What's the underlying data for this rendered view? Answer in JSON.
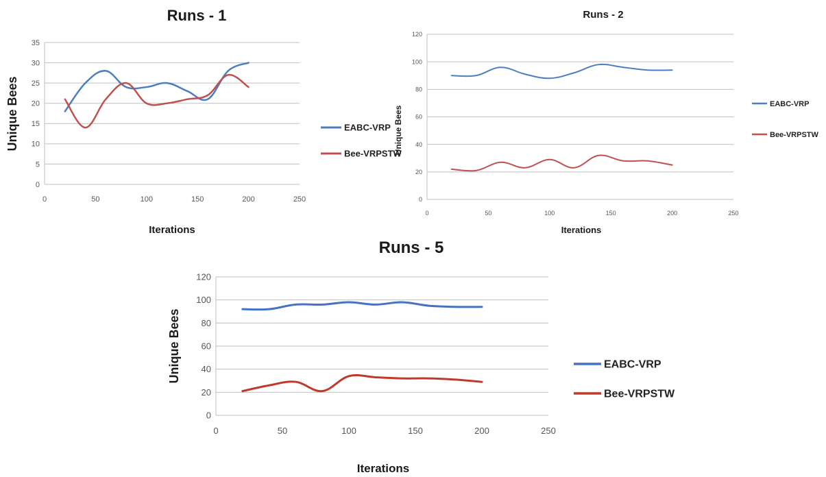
{
  "chart_data": [
    {
      "type": "line",
      "title": "Runs - 1",
      "xlabel": "Iterations",
      "ylabel": "Unique Bees",
      "xlim": [
        0,
        250
      ],
      "ylim": [
        0,
        35
      ],
      "xticks": [
        0,
        50,
        100,
        150,
        200,
        250
      ],
      "yticks": [
        0,
        5,
        10,
        15,
        20,
        25,
        30,
        35
      ],
      "grid": true,
      "legend_position": "right",
      "series": [
        {
          "name": "EABC-VRP",
          "color": "#4a7ebf",
          "x": [
            20,
            40,
            60,
            80,
            100,
            120,
            140,
            160,
            180,
            200
          ],
          "y": [
            18,
            25,
            28,
            24,
            24,
            25,
            23,
            21,
            28,
            30
          ]
        },
        {
          "name": "Bee-VRPSTW",
          "color": "#c0504d",
          "x": [
            20,
            40,
            60,
            80,
            100,
            120,
            140,
            160,
            180,
            200
          ],
          "y": [
            21,
            14,
            21,
            25,
            20,
            20,
            21,
            22,
            27,
            24
          ]
        }
      ]
    },
    {
      "type": "line",
      "title": "Runs - 2",
      "xlabel": "Iterations",
      "ylabel": "Unique Bees",
      "xlim": [
        0,
        250
      ],
      "ylim": [
        0,
        120
      ],
      "xticks": [
        0,
        50,
        100,
        150,
        200,
        250
      ],
      "yticks": [
        0,
        20,
        40,
        60,
        80,
        100,
        120
      ],
      "grid": true,
      "legend_position": "right",
      "series": [
        {
          "name": "EABC-VRP",
          "color": "#4a7ebf",
          "x": [
            20,
            40,
            60,
            80,
            100,
            120,
            140,
            160,
            180,
            200
          ],
          "y": [
            90,
            90,
            96,
            91,
            88,
            92,
            98,
            96,
            94,
            94
          ]
        },
        {
          "name": "Bee-VRPSTW",
          "color": "#c0504d",
          "x": [
            20,
            40,
            60,
            80,
            100,
            120,
            140,
            160,
            180,
            200
          ],
          "y": [
            22,
            21,
            27,
            23,
            29,
            23,
            32,
            28,
            28,
            25
          ]
        }
      ]
    },
    {
      "type": "line",
      "title": "Runs - 5",
      "xlabel": "Iterations",
      "ylabel": "Unique Bees",
      "xlim": [
        0,
        250
      ],
      "ylim": [
        0,
        120
      ],
      "xticks": [
        0,
        50,
        100,
        150,
        200,
        250
      ],
      "yticks": [
        0,
        20,
        40,
        60,
        80,
        100,
        120
      ],
      "grid": true,
      "legend_position": "right",
      "series": [
        {
          "name": "EABC-VRP",
          "color": "#4472c4",
          "x": [
            20,
            40,
            60,
            80,
            100,
            120,
            140,
            160,
            180,
            200
          ],
          "y": [
            92,
            92,
            96,
            96,
            98,
            96,
            98,
            95,
            94,
            94
          ]
        },
        {
          "name": "Bee-VRPSTW",
          "color": "#c0392b",
          "x": [
            20,
            40,
            60,
            80,
            100,
            120,
            140,
            160,
            180,
            200
          ],
          "y": [
            21,
            26,
            29,
            21,
            34,
            33,
            32,
            32,
            31,
            29
          ]
        }
      ]
    }
  ]
}
